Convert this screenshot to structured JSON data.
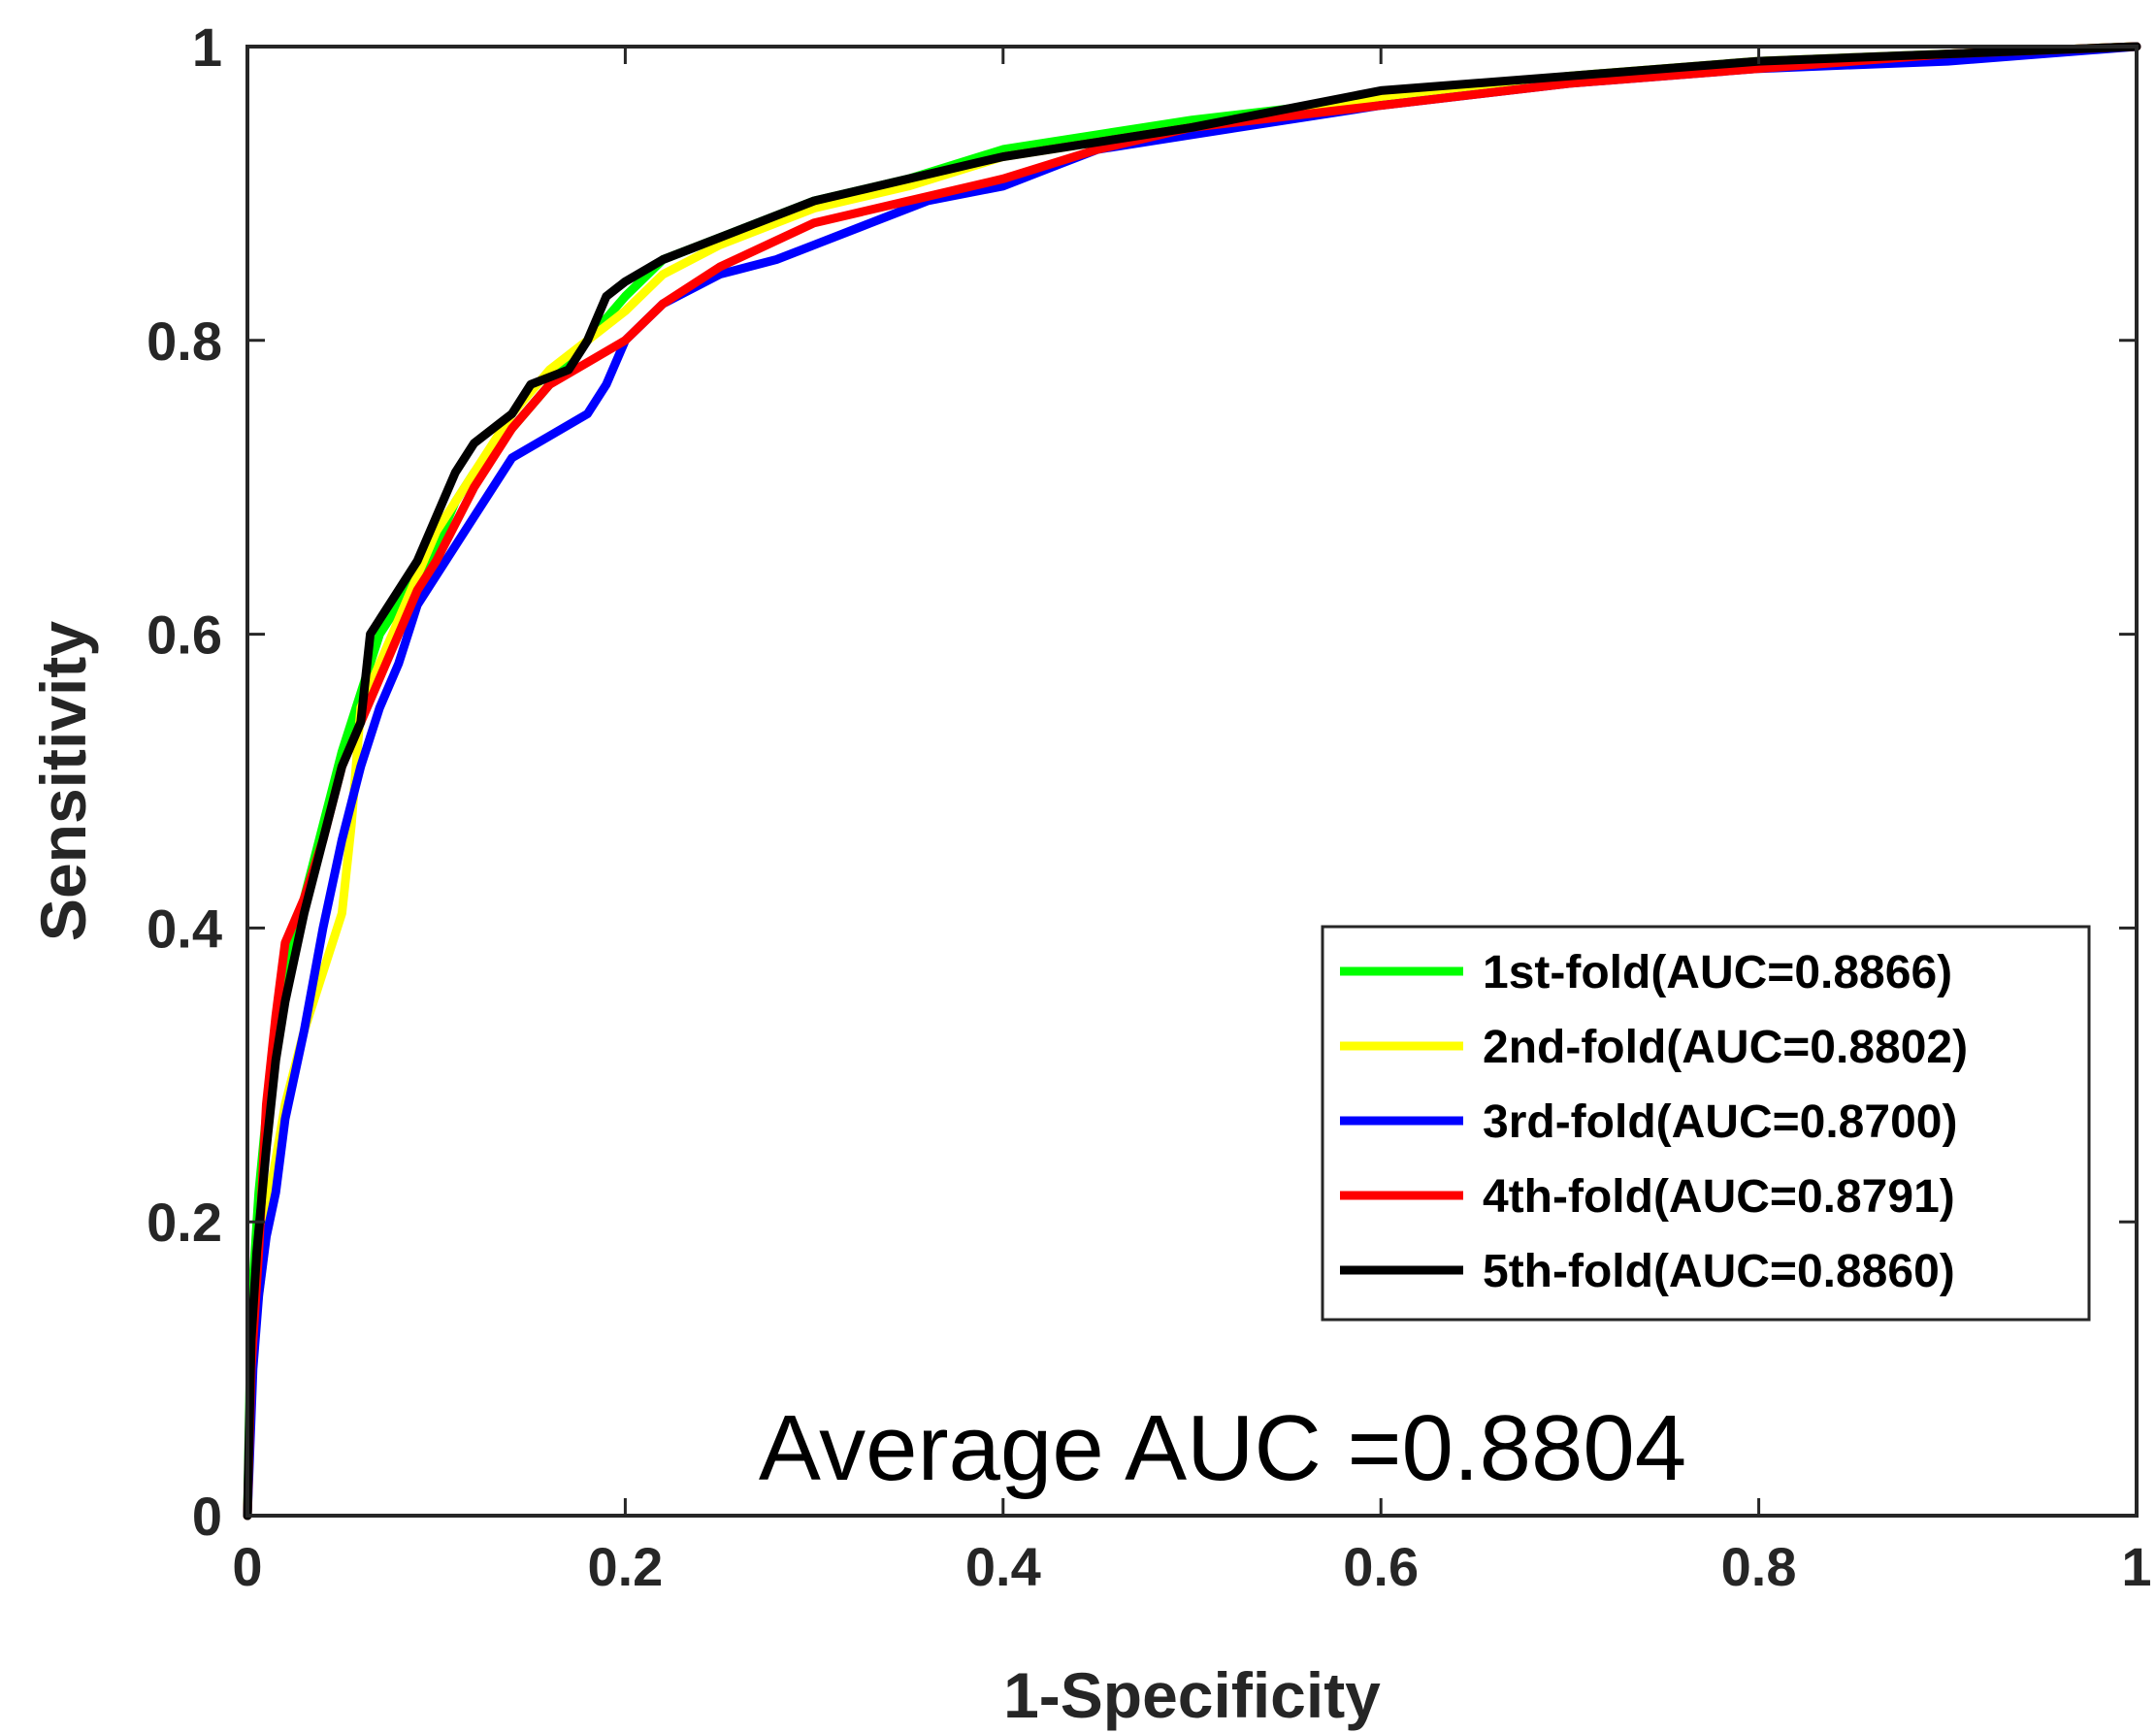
{
  "chart_data": {
    "type": "line",
    "title": "",
    "xlabel": "1-Specificity",
    "ylabel": "Sensitivity",
    "xlim": [
      0,
      1
    ],
    "ylim": [
      0,
      1
    ],
    "xticks": [
      "0",
      "0.2",
      "0.4",
      "0.6",
      "0.8",
      "1"
    ],
    "yticks": [
      "0",
      "0.2",
      "0.4",
      "0.6",
      "0.8",
      "1"
    ],
    "grid": false,
    "legend_position": "lower-right",
    "annotation": "Average AUC =0.8804",
    "series": [
      {
        "name": "1st-fold(AUC=0.8866)",
        "color": "#00ff00",
        "x": [
          0,
          0.002,
          0.006,
          0.012,
          0.02,
          0.03,
          0.04,
          0.05,
          0.06,
          0.07,
          0.08,
          0.09,
          0.1,
          0.11,
          0.12,
          0.14,
          0.16,
          0.18,
          0.2,
          0.22,
          0.25,
          0.28,
          0.3,
          0.35,
          0.4,
          0.45,
          0.5,
          0.6,
          0.7,
          0.8,
          0.9,
          1.0
        ],
        "y": [
          0,
          0.14,
          0.22,
          0.3,
          0.37,
          0.42,
          0.47,
          0.52,
          0.56,
          0.6,
          0.62,
          0.64,
          0.66,
          0.69,
          0.71,
          0.74,
          0.77,
          0.8,
          0.83,
          0.855,
          0.87,
          0.885,
          0.895,
          0.91,
          0.93,
          0.94,
          0.95,
          0.965,
          0.98,
          0.99,
          0.995,
          1.0
        ]
      },
      {
        "name": "2nd-fold(AUC=0.8802)",
        "color": "#ffff00",
        "x": [
          0,
          0.003,
          0.008,
          0.012,
          0.02,
          0.03,
          0.04,
          0.05,
          0.055,
          0.06,
          0.07,
          0.08,
          0.09,
          0.1,
          0.12,
          0.14,
          0.16,
          0.18,
          0.2,
          0.22,
          0.25,
          0.3,
          0.35,
          0.4,
          0.45,
          0.5,
          0.6,
          0.7,
          0.8,
          0.9,
          1.0
        ],
        "y": [
          0,
          0.12,
          0.17,
          0.22,
          0.28,
          0.33,
          0.37,
          0.41,
          0.47,
          0.55,
          0.58,
          0.61,
          0.64,
          0.67,
          0.71,
          0.75,
          0.78,
          0.8,
          0.82,
          0.845,
          0.865,
          0.89,
          0.905,
          0.925,
          0.935,
          0.945,
          0.965,
          0.98,
          0.99,
          0.995,
          1.0
        ]
      },
      {
        "name": "3rd-fold(AUC=0.8700)",
        "color": "#0000ff",
        "x": [
          0,
          0.003,
          0.006,
          0.01,
          0.015,
          0.02,
          0.03,
          0.04,
          0.05,
          0.06,
          0.07,
          0.08,
          0.09,
          0.1,
          0.12,
          0.14,
          0.16,
          0.18,
          0.19,
          0.2,
          0.22,
          0.25,
          0.28,
          0.3,
          0.33,
          0.36,
          0.4,
          0.43,
          0.45,
          0.5,
          0.55,
          0.6,
          0.7,
          0.8,
          0.9,
          1.0
        ],
        "y": [
          0,
          0.1,
          0.15,
          0.19,
          0.22,
          0.27,
          0.33,
          0.4,
          0.46,
          0.51,
          0.55,
          0.58,
          0.62,
          0.64,
          0.68,
          0.72,
          0.735,
          0.75,
          0.77,
          0.8,
          0.825,
          0.845,
          0.855,
          0.865,
          0.88,
          0.895,
          0.905,
          0.92,
          0.93,
          0.94,
          0.95,
          0.96,
          0.975,
          0.985,
          0.99,
          1.0
        ]
      },
      {
        "name": "4th-fold(AUC=0.8791)",
        "color": "#ff0000",
        "x": [
          0,
          0.002,
          0.006,
          0.01,
          0.015,
          0.02,
          0.03,
          0.04,
          0.05,
          0.06,
          0.07,
          0.08,
          0.09,
          0.1,
          0.12,
          0.14,
          0.16,
          0.18,
          0.2,
          0.22,
          0.25,
          0.3,
          0.35,
          0.4,
          0.45,
          0.5,
          0.6,
          0.7,
          0.8,
          0.9,
          1.0
        ],
        "y": [
          0,
          0.1,
          0.18,
          0.28,
          0.34,
          0.39,
          0.42,
          0.46,
          0.51,
          0.54,
          0.57,
          0.6,
          0.63,
          0.65,
          0.7,
          0.74,
          0.77,
          0.785,
          0.8,
          0.825,
          0.85,
          0.88,
          0.895,
          0.91,
          0.93,
          0.945,
          0.96,
          0.975,
          0.985,
          0.995,
          1.0
        ]
      },
      {
        "name": "5th-fold(AUC=0.8860)",
        "color": "#000000",
        "x": [
          0,
          0.002,
          0.005,
          0.01,
          0.015,
          0.02,
          0.03,
          0.04,
          0.05,
          0.06,
          0.065,
          0.07,
          0.08,
          0.09,
          0.1,
          0.11,
          0.12,
          0.14,
          0.15,
          0.17,
          0.18,
          0.19,
          0.2,
          0.22,
          0.25,
          0.3,
          0.35,
          0.4,
          0.45,
          0.5,
          0.6,
          0.7,
          0.8,
          0.9,
          1.0
        ],
        "y": [
          0,
          0.12,
          0.18,
          0.25,
          0.31,
          0.35,
          0.41,
          0.46,
          0.51,
          0.54,
          0.6,
          0.61,
          0.63,
          0.65,
          0.68,
          0.71,
          0.73,
          0.75,
          0.77,
          0.78,
          0.8,
          0.83,
          0.84,
          0.855,
          0.87,
          0.895,
          0.91,
          0.925,
          0.935,
          0.945,
          0.97,
          0.98,
          0.99,
          0.995,
          1.0
        ]
      }
    ]
  }
}
